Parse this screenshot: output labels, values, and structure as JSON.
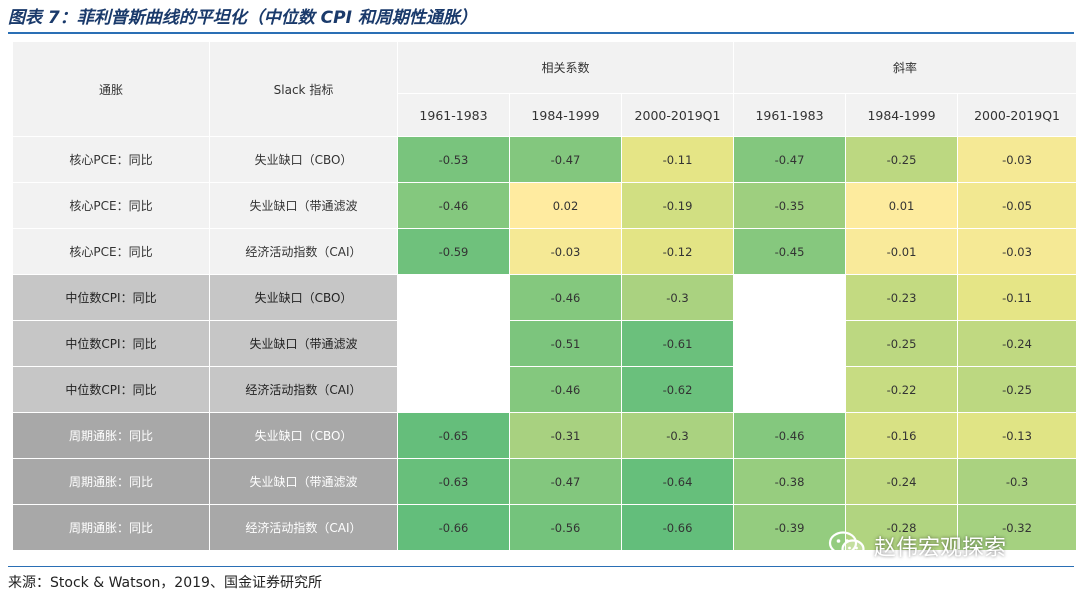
{
  "title": "图表 7：菲利普斯曲线的平坦化（中位数 CPI 和周期性通胀）",
  "source": "来源：Stock & Watson，2019、国金证券研究所",
  "watermark": "赵伟宏观探索",
  "colors": {
    "header_bg": "#f2f2f2",
    "group1_bg": "#f2f2f2",
    "group2_bg": "#c6c6c6",
    "group3_bg": "#a8a8a8",
    "accent": "#2a6fb5"
  },
  "header": {
    "col_inflation": "通胀",
    "col_slack": "Slack 指标",
    "group_corr": "相关系数",
    "group_slope": "斜率",
    "periods": [
      "1961-1983",
      "1984-1999",
      "2000-2019Q1",
      "1961-1983",
      "1984-1999",
      "2000-2019Q1"
    ]
  },
  "rows": [
    {
      "inflation": "核心PCE：同比",
      "slack": "失业缺口（CBO）",
      "corr": [
        "-0.53",
        "-0.47",
        "-0.11"
      ],
      "slope": [
        "-0.47",
        "-0.25",
        "-0.03"
      ]
    },
    {
      "inflation": "核心PCE：同比",
      "slack": "失业缺口（带通滤波",
      "corr": [
        "-0.46",
        "0.02",
        "-0.19"
      ],
      "slope": [
        "-0.35",
        "0.01",
        "-0.05"
      ]
    },
    {
      "inflation": "核心PCE：同比",
      "slack": "经济活动指数（CAI）",
      "corr": [
        "-0.59",
        "-0.03",
        "-0.12"
      ],
      "slope": [
        "-0.45",
        "-0.01",
        "-0.03"
      ]
    },
    {
      "inflation": "中位数CPI：同比",
      "slack": "失业缺口（CBO）",
      "corr": [
        "",
        "-0.46",
        "-0.3"
      ],
      "slope": [
        "",
        "-0.23",
        "-0.11"
      ]
    },
    {
      "inflation": "中位数CPI：同比",
      "slack": "失业缺口（带通滤波",
      "corr": [
        "",
        "-0.51",
        "-0.61"
      ],
      "slope": [
        "",
        "-0.25",
        "-0.24"
      ]
    },
    {
      "inflation": "中位数CPI：同比",
      "slack": "经济活动指数（CAI）",
      "corr": [
        "",
        "-0.46",
        "-0.62"
      ],
      "slope": [
        "",
        "-0.22",
        "-0.25"
      ]
    },
    {
      "inflation": "周期通胀：同比",
      "slack": "失业缺口（CBO）",
      "corr": [
        "-0.65",
        "-0.31",
        "-0.3"
      ],
      "slope": [
        "-0.46",
        "-0.16",
        "-0.13"
      ]
    },
    {
      "inflation": "周期通胀：同比",
      "slack": "失业缺口（带通滤波",
      "corr": [
        "-0.63",
        "-0.47",
        "-0.64"
      ],
      "slope": [
        "-0.38",
        "-0.24",
        "-0.3"
      ]
    },
    {
      "inflation": "周期通胀：同比",
      "slack": "经济活动指数（CAI）",
      "corr": [
        "-0.66",
        "-0.56",
        "-0.66"
      ],
      "slope": [
        "-0.39",
        "-0.28",
        "-0.32"
      ]
    }
  ]
}
